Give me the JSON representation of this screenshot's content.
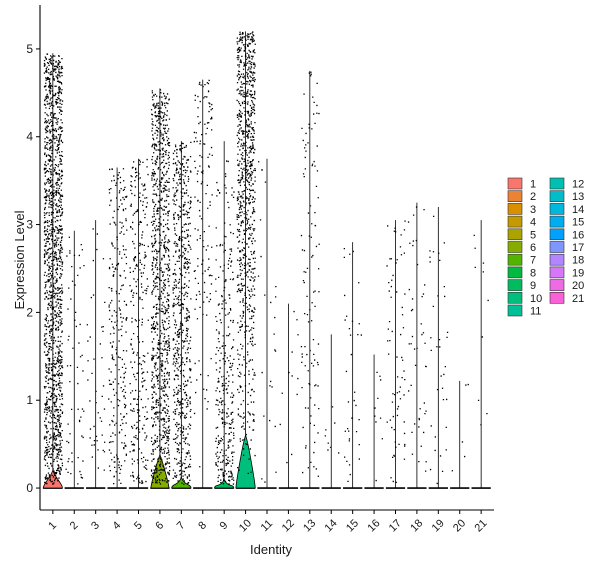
{
  "chart_data": {
    "type": "violin",
    "xlabel": "Identity",
    "ylabel": "Expression Level",
    "ylim": [
      -0.25,
      5.5
    ],
    "yticks": [
      0,
      1,
      2,
      3,
      4,
      5
    ],
    "categories": [
      "1",
      "2",
      "3",
      "4",
      "5",
      "6",
      "7",
      "8",
      "9",
      "10",
      "11",
      "12",
      "13",
      "14",
      "15",
      "16",
      "17",
      "18",
      "19",
      "20",
      "21"
    ],
    "legend_position": "right",
    "series": [
      {
        "name": "1",
        "color": "#F8766D",
        "max": 4.95,
        "violin_peak": 0.2,
        "violin_width": 0.45,
        "points": 1500,
        "dist": "uniform"
      },
      {
        "name": "2",
        "color": "#EB8335",
        "max": 2.93,
        "violin_peak": 0,
        "violin_width": 0,
        "points": 60,
        "dist": "uniform"
      },
      {
        "name": "3",
        "color": "#DA8F00",
        "max": 3.05,
        "violin_peak": 0,
        "violin_width": 0,
        "points": 45,
        "dist": "uniform"
      },
      {
        "name": "4",
        "color": "#C49A00",
        "max": 3.65,
        "violin_peak": 0,
        "violin_width": 0,
        "points": 260,
        "dist": "uniform"
      },
      {
        "name": "5",
        "color": "#A9A400",
        "max": 3.75,
        "violin_peak": 0,
        "violin_width": 0,
        "points": 280,
        "dist": "uniform"
      },
      {
        "name": "6",
        "color": "#86AC00",
        "max": 4.55,
        "violin_peak": 0.38,
        "violin_width": 0.42,
        "points": 1000,
        "dist": "uniform"
      },
      {
        "name": "7",
        "color": "#53B400",
        "max": 3.95,
        "violin_peak": 0.12,
        "violin_width": 0.45,
        "points": 650,
        "dist": "uniform"
      },
      {
        "name": "8",
        "color": "#00B93F",
        "max": 4.65,
        "violin_peak": 0,
        "violin_width": 0,
        "points": 140,
        "dist": "upper"
      },
      {
        "name": "9",
        "color": "#00BC5F",
        "max": 3.95,
        "violin_peak": 0.1,
        "violin_width": 0.45,
        "points": 320,
        "dist": "lower"
      },
      {
        "name": "10",
        "color": "#00BF7D",
        "max": 5.2,
        "violin_peak": 0.6,
        "violin_width": 0.45,
        "points": 900,
        "dist": "upper"
      },
      {
        "name": "11",
        "color": "#00C098",
        "max": 3.75,
        "violin_peak": 0,
        "violin_width": 0,
        "points": 25,
        "dist": "uniform"
      },
      {
        "name": "12",
        "color": "#00C0B1",
        "max": 2.1,
        "violin_peak": 0,
        "violin_width": 0,
        "points": 12,
        "dist": "uniform"
      },
      {
        "name": "13",
        "color": "#00BDC9",
        "max": 4.75,
        "violin_peak": 0,
        "violin_width": 0,
        "points": 110,
        "dist": "uniform"
      },
      {
        "name": "14",
        "color": "#00B7DE",
        "max": 1.75,
        "violin_peak": 0,
        "violin_width": 0,
        "points": 8,
        "dist": "uniform"
      },
      {
        "name": "15",
        "color": "#00AEF0",
        "max": 2.8,
        "violin_peak": 0,
        "violin_width": 0,
        "points": 35,
        "dist": "uniform"
      },
      {
        "name": "16",
        "color": "#00A2FD",
        "max": 1.52,
        "violin_peak": 0,
        "violin_width": 0,
        "points": 10,
        "dist": "uniform"
      },
      {
        "name": "17",
        "color": "#7F96FF",
        "max": 3.05,
        "violin_peak": 0,
        "violin_width": 0,
        "points": 70,
        "dist": "uniform"
      },
      {
        "name": "18",
        "color": "#B186FF",
        "max": 3.25,
        "violin_peak": 0,
        "violin_width": 0,
        "points": 45,
        "dist": "uniform"
      },
      {
        "name": "19",
        "color": "#D676F9",
        "max": 3.2,
        "violin_peak": 0,
        "violin_width": 0,
        "points": 35,
        "dist": "uniform"
      },
      {
        "name": "20",
        "color": "#EE6BE3",
        "max": 1.22,
        "violin_peak": 0,
        "violin_width": 0,
        "points": 5,
        "dist": "uniform"
      },
      {
        "name": "21",
        "color": "#FB61D7",
        "max": 3.05,
        "violin_peak": 0,
        "violin_width": 0,
        "points": 10,
        "dist": "uniform"
      }
    ]
  }
}
